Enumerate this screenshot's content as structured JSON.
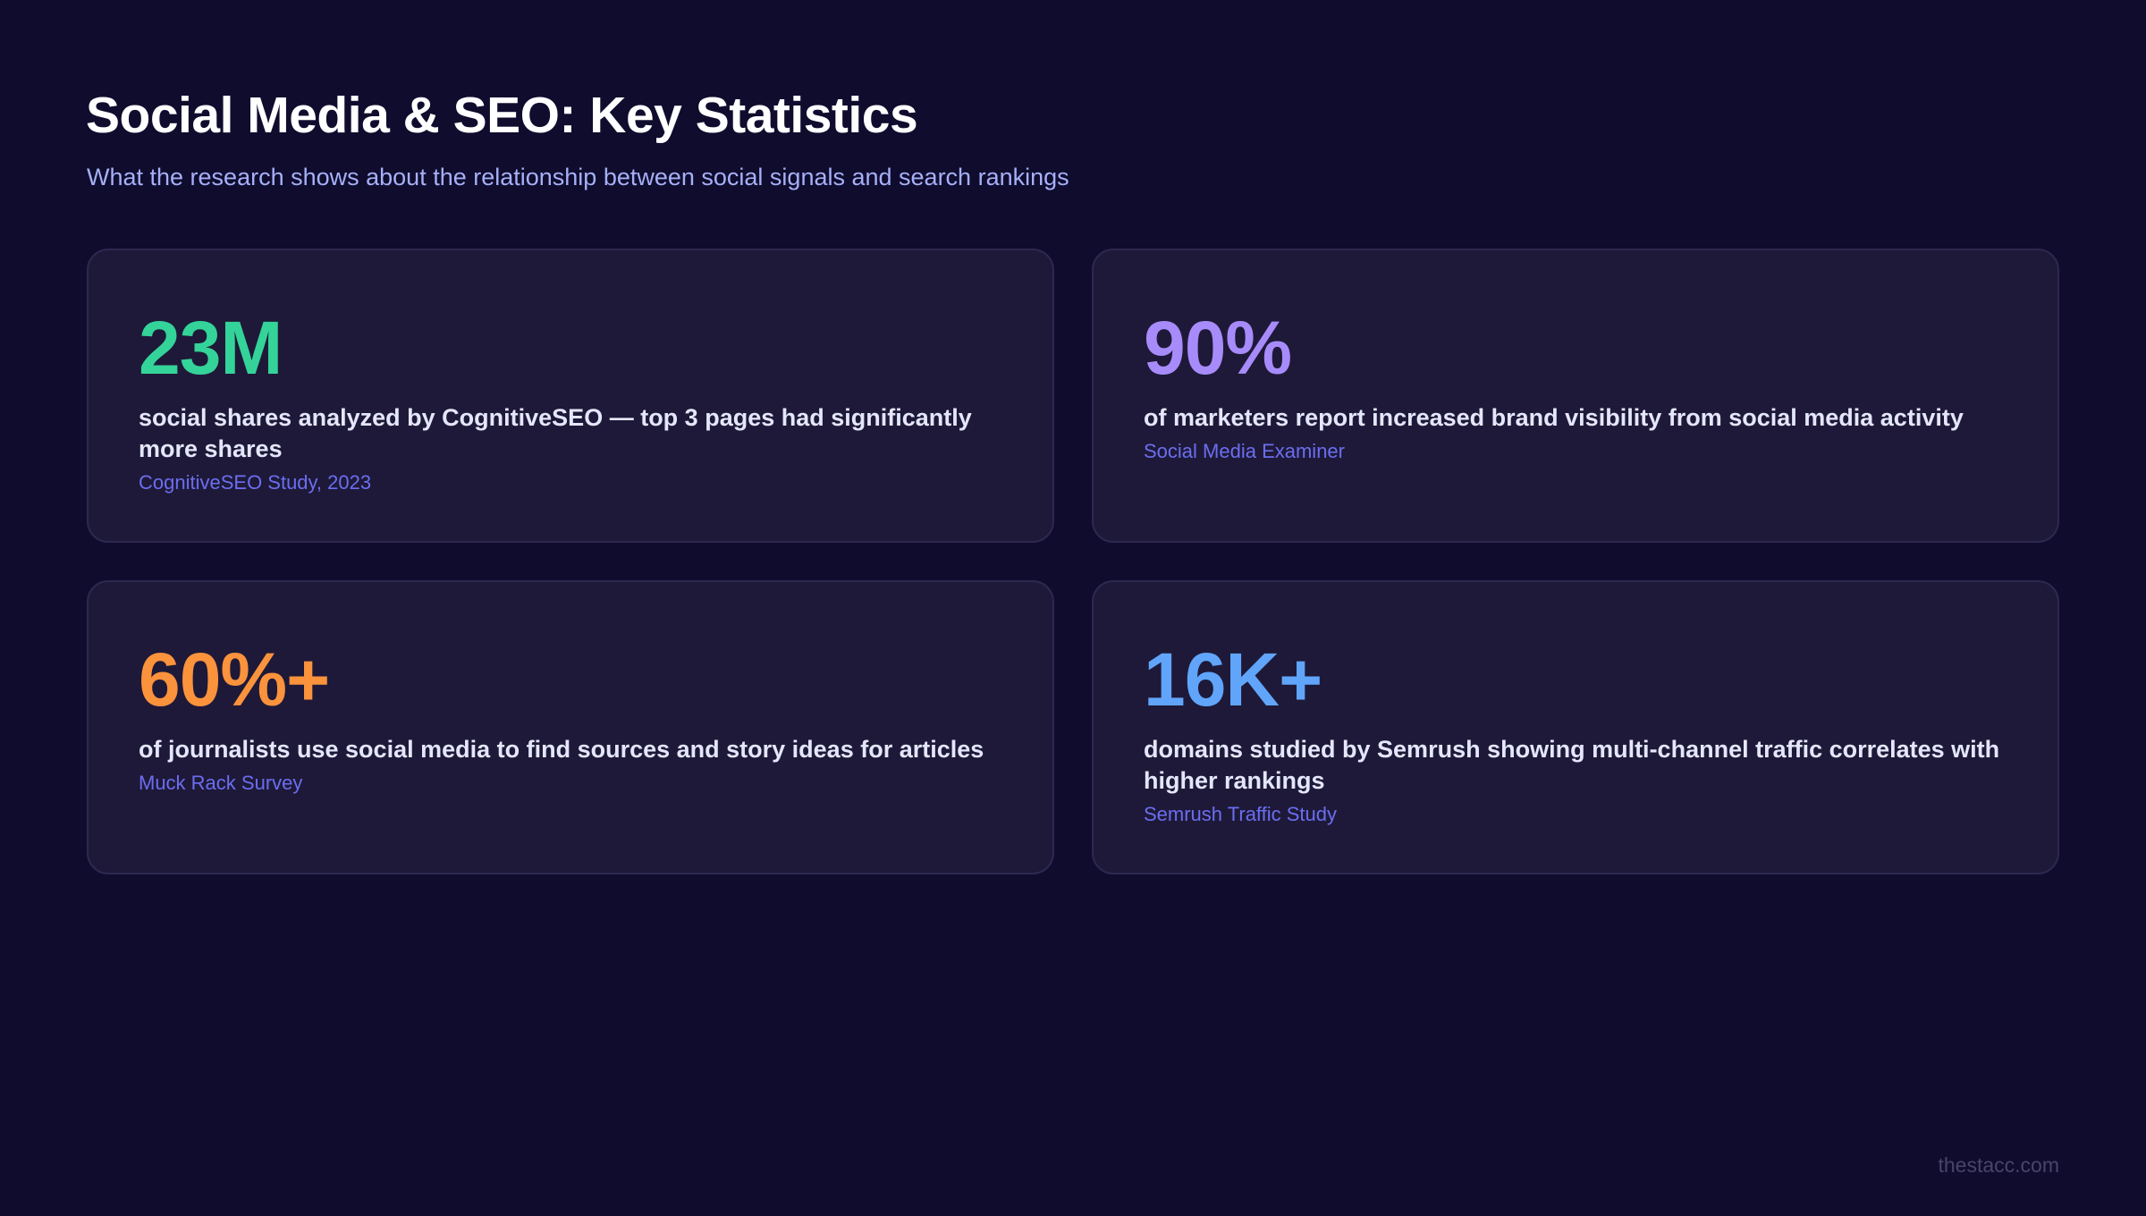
{
  "header": {
    "title": "Social Media & SEO: Key Statistics",
    "subtitle": "What the research shows about the relationship between social signals and search rankings"
  },
  "stats": [
    {
      "value": "23M",
      "color": "#34d399",
      "description": "social shares analyzed by CognitiveSEO — top 3 pages had significantly more shares",
      "source": "CognitiveSEO Study, 2023"
    },
    {
      "value": "90%",
      "color": "#a78bfa",
      "description": "of marketers report increased brand visibility from social media activity",
      "source": "Social Media Examiner"
    },
    {
      "value": "60%+",
      "color": "#fb923c",
      "description": "of journalists use social media to find sources and story ideas for articles",
      "source": "Muck Rack Survey"
    },
    {
      "value": "16K+",
      "color": "#60a5fa",
      "description": "domains studied by Semrush showing multi-channel traffic correlates with higher rankings",
      "source": "Semrush Traffic Study"
    }
  ],
  "footer": {
    "brand": "thestacc.com"
  }
}
